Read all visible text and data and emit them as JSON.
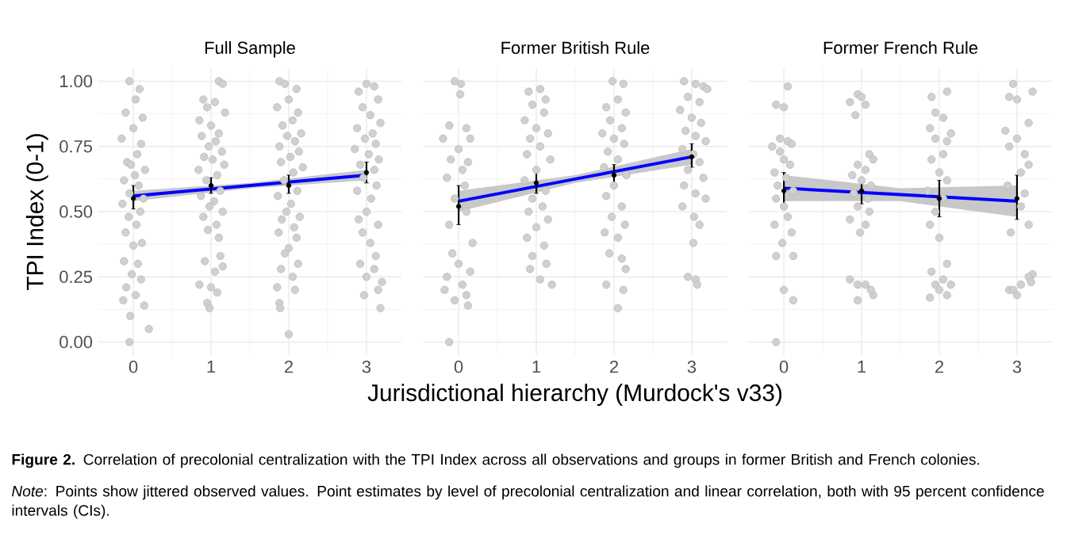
{
  "chart_data": [
    {
      "type": "scatter",
      "title": "Full Sample",
      "ylabel": "TPI Index (0-1)",
      "xlim": [
        -0.45,
        3.45
      ],
      "ylim": [
        -0.05,
        1.05
      ],
      "xticks": [
        0,
        1,
        2,
        3
      ],
      "yticks": [
        {
          "value": 0,
          "label": "0.00"
        },
        {
          "value": 0.25,
          "label": "0.25"
        },
        {
          "value": 0.5,
          "label": "0.50"
        },
        {
          "value": 0.75,
          "label": "0.75"
        },
        {
          "value": 1,
          "label": "1.00"
        }
      ],
      "grid": true,
      "annotations": [
        "**Figure 2.** Correlation of precolonial centralization with the TPI Index across all observations and groups in former British and French colonies.",
        "*Note*: Points show jittered observed values. Point estimates by level of precolonial centralization and linear correlation, both with 95 percent confidence intervals (CIs)."
      ],
      "series": [
        {
          "marker": "circle",
          "color": "#d0d0d0",
          "x": [
            -0.05,
            0.08,
            0.03,
            -0.1,
            0.12,
            0.0,
            -0.15,
            0.1,
            0.05,
            -0.08,
            -0.03,
            0.15,
            0.02,
            -0.12,
            0.07,
            -0.05,
            0.13,
            -0.14,
            0.09,
            -0.06,
            0.04,
            -0.1,
            0.11,
            0.0,
            -0.12,
            0.06,
            -0.02,
            0.1,
            -0.09,
            0.03,
            -0.13,
            0.14,
            -0.04,
            0.2,
            -0.05,
            1.1,
            1.15,
            0.9,
            1.05,
            0.95,
            1.18,
            0.85,
            1.0,
            1.1,
            0.88,
            1.06,
            0.97,
            1.14,
            0.91,
            1.02,
            1.17,
            0.84,
            1.08,
            0.94,
            1.12,
            0.87,
            1.04,
            0.98,
            1.15,
            0.9,
            1.07,
            0.96,
            1.1,
            1.12,
            0.92,
            1.15,
            1.05,
            0.85,
            1.0,
            1.08,
            0.95,
            0.98,
            1.88,
            1.95,
            2.1,
            2.0,
            1.85,
            2.12,
            2.05,
            1.92,
            2.16,
            1.98,
            2.08,
            1.88,
            2.13,
            2.02,
            1.9,
            2.18,
            2.06,
            1.94,
            2.11,
            1.86,
            2.03,
            1.97,
            2.14,
            1.91,
            2.07,
            1.87,
            2.1,
            2.0,
            1.95,
            2.12,
            1.9,
            2.05,
            1.85,
            2.08,
            1.88,
            1.89,
            2.0,
            3.0,
            3.1,
            2.9,
            3.15,
            2.95,
            3.05,
            3.18,
            2.88,
            3.08,
            2.98,
            3.12,
            2.85,
            3.03,
            3.16,
            2.92,
            3.1,
            2.96,
            3.13,
            2.88,
            3.06,
            3.0,
            2.9,
            3.15,
            2.95,
            3.05,
            3.12,
            2.92,
            3.1,
            3.0,
            3.2,
            3.15,
            2.97,
            3.18
          ],
          "values": [
            1.0,
            0.97,
            0.93,
            0.88,
            0.86,
            0.82,
            0.78,
            0.76,
            0.72,
            0.69,
            0.68,
            0.66,
            0.64,
            0.62,
            0.6,
            0.57,
            0.55,
            0.53,
            0.5,
            0.48,
            0.45,
            0.42,
            0.38,
            0.37,
            0.31,
            0.3,
            0.26,
            0.24,
            0.21,
            0.18,
            0.16,
            0.14,
            0.1,
            0.05,
            0.0,
            1.0,
            0.99,
            0.93,
            0.92,
            0.9,
            0.88,
            0.85,
            0.83,
            0.8,
            0.79,
            0.77,
            0.75,
            0.73,
            0.71,
            0.7,
            0.68,
            0.66,
            0.64,
            0.62,
            0.58,
            0.56,
            0.54,
            0.52,
            0.5,
            0.48,
            0.45,
            0.43,
            0.4,
            0.33,
            0.31,
            0.29,
            0.27,
            0.22,
            0.21,
            0.19,
            0.15,
            0.13,
            1.0,
            0.99,
            0.97,
            0.93,
            0.9,
            0.88,
            0.85,
            0.83,
            0.8,
            0.79,
            0.77,
            0.75,
            0.73,
            0.71,
            0.69,
            0.67,
            0.65,
            0.62,
            0.58,
            0.56,
            0.53,
            0.5,
            0.48,
            0.47,
            0.44,
            0.42,
            0.4,
            0.36,
            0.34,
            0.3,
            0.28,
            0.25,
            0.21,
            0.2,
            0.15,
            0.13,
            0.03,
            0.99,
            0.98,
            0.96,
            0.93,
            0.9,
            0.87,
            0.84,
            0.82,
            0.8,
            0.78,
            0.76,
            0.74,
            0.72,
            0.7,
            0.68,
            0.66,
            0.63,
            0.6,
            0.58,
            0.55,
            0.5,
            0.47,
            0.45,
            0.42,
            0.38,
            0.33,
            0.3,
            0.28,
            0.25,
            0.23,
            0.2,
            0.18,
            0.13
          ]
        },
        {
          "type": "line",
          "marker": "none",
          "color": "#0000ff",
          "x": [
            0,
            1.5,
            3
          ],
          "values": [
            0.56,
            0.6,
            0.64
          ],
          "lower": [
            0.54,
            0.59,
            0.62
          ],
          "upper": [
            0.58,
            0.61,
            0.66
          ]
        },
        {
          "marker": "circle",
          "color": "#000000",
          "x": [
            0,
            1,
            2,
            3
          ],
          "values": [
            0.55,
            0.6,
            0.6,
            0.65
          ],
          "errors": [
            [
              0.51,
              0.6
            ],
            [
              0.57,
              0.63
            ],
            [
              0.57,
              0.64
            ],
            [
              0.61,
              0.69
            ]
          ]
        }
      ]
    },
    {
      "type": "scatter",
      "title": "Former British Rule",
      "xlabel": "Jurisdictional hierarchy (Murdock's v33)",
      "xlim": [
        -0.45,
        3.45
      ],
      "ylim": [
        -0.05,
        1.05
      ],
      "xticks": [
        0,
        1,
        2,
        3
      ],
      "yticks": [
        0,
        0.25,
        0.5,
        0.75,
        1
      ],
      "grid": true,
      "tick_labels": "x",
      "series": [
        {
          "marker": "circle",
          "color": "#d0d0d0",
          "x": [
            -0.05,
            0.03,
            0.02,
            -0.12,
            0.1,
            -0.2,
            0.15,
            0.0,
            -0.1,
            0.12,
            0.05,
            -0.15,
            0.08,
            -0.05,
            0.1,
            -0.12,
            0.18,
            -0.08,
            0.0,
            0.15,
            -0.15,
            0.05,
            -0.18,
            0.1,
            -0.05,
            0.12,
            -0.12,
            1.05,
            0.9,
            1.12,
            0.95,
            1.1,
            0.85,
            1.0,
            1.15,
            0.92,
            1.05,
            0.88,
            1.18,
            1.0,
            0.85,
            1.12,
            0.95,
            1.08,
            0.9,
            1.15,
            1.0,
            0.88,
            1.1,
            0.95,
            1.13,
            0.92,
            1.05,
            1.2,
            1.98,
            2.12,
            2.05,
            1.9,
            2.15,
            1.95,
            2.1,
            1.85,
            2.0,
            2.13,
            1.92,
            2.05,
            1.87,
            2.16,
            2.0,
            1.9,
            2.1,
            1.97,
            2.14,
            1.88,
            2.05,
            1.94,
            2.1,
            2.15,
            1.9,
            2.12,
            2.05,
            2.9,
            3.05,
            3.15,
            3.2,
            2.95,
            3.1,
            2.85,
            3.0,
            3.12,
            2.92,
            3.05,
            3.18,
            2.88,
            3.02,
            3.1,
            2.95,
            3.15,
            2.9,
            3.05,
            3.18,
            2.88,
            3.03,
            3.1,
            3.02,
            2.95,
            3.05,
            3.07
          ],
          "values": [
            1.0,
            0.99,
            0.95,
            0.83,
            0.82,
            0.78,
            0.78,
            0.74,
            0.7,
            0.69,
            0.66,
            0.63,
            0.6,
            0.55,
            0.5,
            0.45,
            0.38,
            0.34,
            0.3,
            0.27,
            0.25,
            0.22,
            0.2,
            0.18,
            0.16,
            0.14,
            0.0,
            0.97,
            0.96,
            0.93,
            0.91,
            0.88,
            0.85,
            0.82,
            0.8,
            0.78,
            0.75,
            0.72,
            0.7,
            0.66,
            0.62,
            0.58,
            0.55,
            0.52,
            0.5,
            0.47,
            0.44,
            0.4,
            0.37,
            0.33,
            0.3,
            0.28,
            0.24,
            0.22,
            1.0,
            0.99,
            0.93,
            0.9,
            0.88,
            0.85,
            0.82,
            0.8,
            0.78,
            0.76,
            0.73,
            0.7,
            0.67,
            0.64,
            0.6,
            0.56,
            0.52,
            0.48,
            0.45,
            0.42,
            0.4,
            0.34,
            0.32,
            0.28,
            0.22,
            0.2,
            0.13,
            1.0,
            0.99,
            0.98,
            0.97,
            0.94,
            0.92,
            0.89,
            0.86,
            0.84,
            0.81,
            0.79,
            0.77,
            0.74,
            0.72,
            0.69,
            0.66,
            0.63,
            0.6,
            0.57,
            0.55,
            0.52,
            0.48,
            0.45,
            0.38,
            0.25,
            0.24,
            0.22
          ]
        },
        {
          "type": "line",
          "marker": "none",
          "color": "#0000ff",
          "x": [
            0,
            1.5,
            3
          ],
          "values": [
            0.54,
            0.625,
            0.71
          ],
          "lower": [
            0.5,
            0.61,
            0.68
          ],
          "upper": [
            0.58,
            0.64,
            0.74
          ]
        },
        {
          "marker": "circle",
          "color": "#000000",
          "x": [
            0,
            1,
            2,
            3
          ],
          "values": [
            0.52,
            0.61,
            0.64,
            0.71
          ],
          "errors": [
            [
              0.45,
              0.6
            ],
            [
              0.57,
              0.65
            ],
            [
              0.6,
              0.68
            ],
            [
              0.67,
              0.76
            ]
          ]
        }
      ]
    },
    {
      "type": "scatter",
      "title": "Former French Rule",
      "xlim": [
        -0.45,
        3.45
      ],
      "ylim": [
        -0.05,
        1.05
      ],
      "xticks": [
        0,
        1,
        2,
        3
      ],
      "yticks": [
        0,
        0.25,
        0.5,
        0.75,
        1
      ],
      "grid": true,
      "tick_labels": "x",
      "series": [
        {
          "marker": "circle",
          "color": "#d0d0d0",
          "x": [
            0.05,
            -0.1,
            0.0,
            -0.05,
            0.05,
            0.1,
            -0.15,
            -0.05,
            0.0,
            0.08,
            -0.12,
            0.03,
            -0.08,
            0.12,
            -0.1,
            0.0,
            0.05,
            -0.12,
            0.1,
            -0.02,
            0.12,
            -0.1,
            0.0,
            0.12,
            -0.1,
            0.95,
            1.0,
            0.85,
            1.05,
            0.92,
            1.1,
            1.15,
            0.95,
            1.05,
            0.88,
            1.0,
            1.12,
            0.9,
            1.08,
            0.95,
            1.1,
            0.85,
            1.05,
            0.98,
            0.85,
            0.95,
            1.05,
            1.15,
            1.12,
            0.95,
            2.1,
            1.9,
            1.95,
            2.05,
            1.88,
            2.15,
            1.95,
            2.1,
            2.05,
            1.9,
            2.0,
            2.1,
            1.85,
            2.05,
            1.95,
            1.88,
            2.0,
            2.1,
            1.9,
            2.05,
            1.95,
            2.15,
            2.0,
            2.1,
            1.88,
            2.95,
            3.2,
            2.9,
            3.0,
            3.15,
            2.85,
            3.0,
            2.9,
            3.1,
            3.15,
            3.05,
            2.88,
            3.1,
            3.05,
            3.15,
            2.92,
            3.2,
            3.15,
            3.05,
            2.9,
            2.95,
            3.18,
            3.0
          ],
          "values": [
            0.98,
            0.91,
            0.9,
            0.78,
            0.77,
            0.76,
            0.75,
            0.73,
            0.7,
            0.68,
            0.65,
            0.63,
            0.6,
            0.58,
            0.55,
            0.52,
            0.48,
            0.45,
            0.42,
            0.38,
            0.33,
            0.33,
            0.2,
            0.16,
            0.0,
            0.95,
            0.94,
            0.92,
            0.91,
            0.87,
            0.72,
            0.7,
            0.68,
            0.66,
            0.64,
            0.62,
            0.6,
            0.57,
            0.55,
            0.52,
            0.5,
            0.47,
            0.45,
            0.42,
            0.24,
            0.22,
            0.22,
            0.18,
            0.2,
            0.16,
            0.96,
            0.94,
            0.88,
            0.86,
            0.82,
            0.8,
            0.78,
            0.77,
            0.72,
            0.7,
            0.65,
            0.62,
            0.58,
            0.55,
            0.5,
            0.45,
            0.4,
            0.3,
            0.27,
            0.24,
            0.22,
            0.22,
            0.2,
            0.18,
            0.17,
            0.99,
            0.96,
            0.94,
            0.93,
            0.84,
            0.81,
            0.78,
            0.75,
            0.72,
            0.68,
            0.65,
            0.6,
            0.57,
            0.52,
            0.45,
            0.42,
            0.26,
            0.25,
            0.22,
            0.2,
            0.2,
            0.23,
            0.18
          ]
        },
        {
          "type": "line",
          "marker": "none",
          "color": "#0000ff",
          "x": [
            0,
            1.5,
            3
          ],
          "values": [
            0.59,
            0.565,
            0.54
          ],
          "lower": [
            0.54,
            0.54,
            0.48
          ],
          "upper": [
            0.64,
            0.59,
            0.6
          ]
        },
        {
          "marker": "circle",
          "color": "#000000",
          "x": [
            0,
            1,
            2,
            3
          ],
          "values": [
            0.58,
            0.58,
            0.55,
            0.55
          ],
          "errors": [
            [
              0.52,
              0.65
            ],
            [
              0.53,
              0.63
            ],
            [
              0.48,
              0.62
            ],
            [
              0.47,
              0.64
            ]
          ]
        }
      ]
    }
  ]
}
